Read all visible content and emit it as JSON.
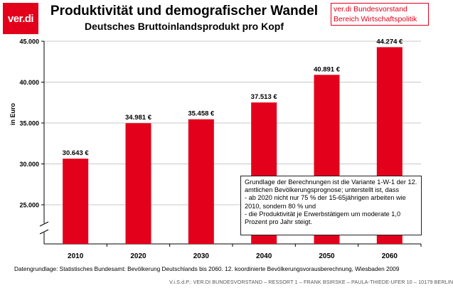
{
  "logo": {
    "text": "ver.di"
  },
  "org": {
    "line1": "ver.di Bundesvorstand",
    "line2": "Bereich Wirtschaftspolitik"
  },
  "note": {
    "text": "Grundlage der Berechnungen ist die Variante 1-W-1 der 12. amtlichen Bevölkerungsprognose; unterstellt ist, dass\n- ab 2020 nicht nur 75 % der 15-65jährigen arbeiten wie 2010, sondern 80 % und\n- die Produktivität je Erwerbstätigem um moderate 1,0 Prozent pro Jahr steigt."
  },
  "source": "Datengrundlage: Statistisches Bundesamt: Bevölkerung Deutschlands bis 2060. 12. koordinierte Bevölkerungsvorausberechnung, Wiesbaden 2009",
  "footer": "V.i.S.d.P.: VER.DI BUNDESVORSTAND – RESSORT 1 – FRANK BSIRSKE – PAULA-THIEDE-UFER 10 – 10179 BERLIN",
  "colors": {
    "bar": "#e3001b",
    "brand": "#e3001b",
    "grid": "#c8c8c8"
  },
  "chart_data": {
    "type": "bar",
    "title": "Produktivität und demografischer Wandel",
    "subtitle": "Deutsches Bruttoinlandsprodukt pro Kopf",
    "ylabel": "in Euro",
    "categories": [
      "2010",
      "2020",
      "2030",
      "2040",
      "2050",
      "2060"
    ],
    "values": [
      30643,
      34981,
      35458,
      37513,
      40891,
      44274
    ],
    "value_labels": [
      "30.643 €",
      "34.981 €",
      "35.458 €",
      "37.513 €",
      "40.891 €",
      "44.274 €"
    ],
    "ylim": [
      20000,
      45000
    ],
    "yticks": [
      25000,
      30000,
      35000,
      40000,
      45000
    ],
    "ytick_labels": [
      "25.000",
      "30.000",
      "35.000",
      "40.000",
      "45.000"
    ],
    "grid": true,
    "axis_break": true
  }
}
